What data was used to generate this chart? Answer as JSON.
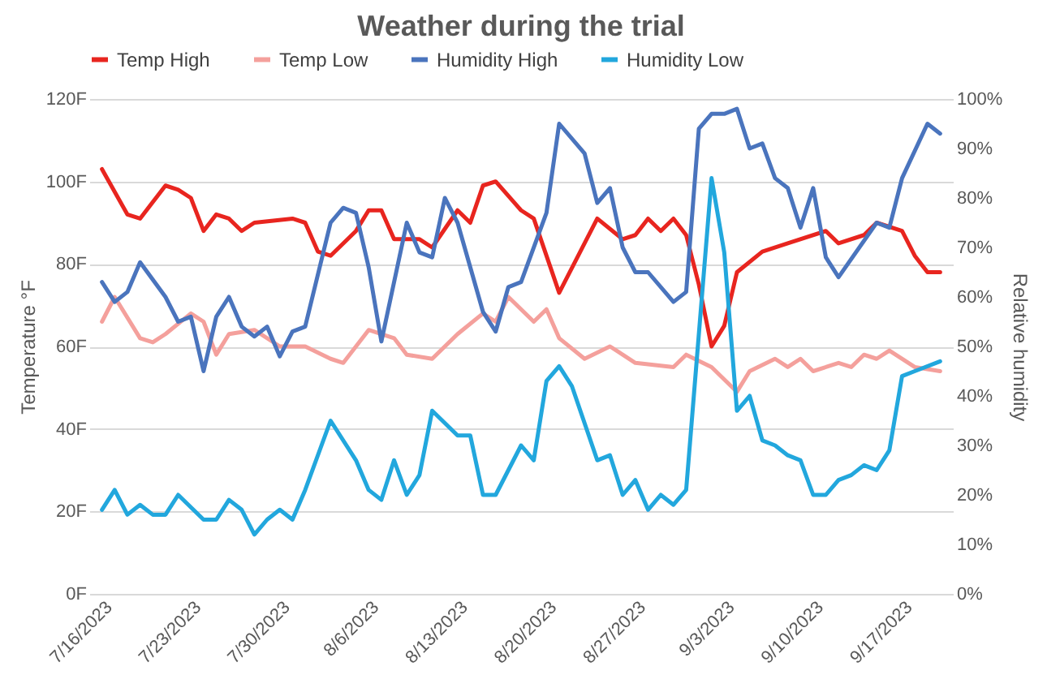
{
  "chart_data": {
    "type": "line",
    "title": "Weather during the trial",
    "ylabel": "Temperature °F",
    "y2label": "Relative humidity",
    "legend": "top",
    "grid": "y",
    "marker": "none",
    "line_style": "solid",
    "xlim": [
      "2023-07-15",
      "2023-09-21"
    ],
    "xticks": [
      {
        "value": "2023-07-16",
        "label": "7/16/2023"
      },
      {
        "value": "2023-07-23",
        "label": "7/23/2023"
      },
      {
        "value": "2023-07-30",
        "label": "7/30/2023"
      },
      {
        "value": "2023-08-06",
        "label": "8/6/2023"
      },
      {
        "value": "2023-08-13",
        "label": "8/13/2023"
      },
      {
        "value": "2023-08-20",
        "label": "8/20/2023"
      },
      {
        "value": "2023-08-27",
        "label": "8/27/2023"
      },
      {
        "value": "2023-09-03",
        "label": "9/3/2023"
      },
      {
        "value": "2023-09-10",
        "label": "9/10/2023"
      },
      {
        "value": "2023-09-17",
        "label": "9/17/2023"
      }
    ],
    "ylim": [
      0,
      120
    ],
    "yticks": [
      {
        "value": 0,
        "label": "0F"
      },
      {
        "value": 20,
        "label": "20F"
      },
      {
        "value": 40,
        "label": "40F"
      },
      {
        "value": 60,
        "label": "60F"
      },
      {
        "value": 80,
        "label": "80F"
      },
      {
        "value": 100,
        "label": "100F"
      },
      {
        "value": 120,
        "label": "120F"
      }
    ],
    "y2lim": [
      0,
      100
    ],
    "y2ticks": [
      {
        "value": 0,
        "label": "0%"
      },
      {
        "value": 10,
        "label": "10%"
      },
      {
        "value": 20,
        "label": "20%"
      },
      {
        "value": 30,
        "label": "30%"
      },
      {
        "value": 40,
        "label": "40%"
      },
      {
        "value": 50,
        "label": "50%"
      },
      {
        "value": 60,
        "label": "60%"
      },
      {
        "value": 70,
        "label": "70%"
      },
      {
        "value": 80,
        "label": "80%"
      },
      {
        "value": 90,
        "label": "90%"
      },
      {
        "value": 100,
        "label": "100%"
      }
    ],
    "series": [
      {
        "name": "Temp High",
        "color": "#e8251f",
        "x": [
          "2023-07-16",
          "2023-07-18",
          "2023-07-19",
          "2023-07-21",
          "2023-07-22",
          "2023-07-23",
          "2023-07-24",
          "2023-07-25",
          "2023-07-26",
          "2023-07-27",
          "2023-07-28",
          "2023-07-31",
          "2023-08-01",
          "2023-08-02",
          "2023-08-03",
          "2023-08-05",
          "2023-08-06",
          "2023-08-07",
          "2023-08-08",
          "2023-08-10",
          "2023-08-11",
          "2023-08-13",
          "2023-08-14",
          "2023-08-15",
          "2023-08-16",
          "2023-08-18",
          "2023-08-19",
          "2023-08-21",
          "2023-08-23",
          "2023-08-24",
          "2023-08-26",
          "2023-08-27",
          "2023-08-28",
          "2023-08-29",
          "2023-08-30",
          "2023-08-31",
          "2023-09-01",
          "2023-09-02",
          "2023-09-03",
          "2023-09-04",
          "2023-09-06",
          "2023-09-08",
          "2023-09-11",
          "2023-09-12",
          "2023-09-14",
          "2023-09-15",
          "2023-09-17",
          "2023-09-18",
          "2023-09-19",
          "2023-09-20"
        ],
        "values": [
          103,
          92,
          91,
          99,
          98,
          96,
          88,
          92,
          91,
          88,
          90,
          91,
          90,
          83,
          82,
          88,
          93,
          93,
          86,
          86,
          84,
          93,
          90,
          99,
          100,
          93,
          91,
          73,
          85,
          91,
          86,
          87,
          91,
          88,
          91,
          87,
          75,
          60,
          65,
          78,
          83,
          85,
          88,
          85,
          87,
          90,
          88,
          82,
          78,
          78
        ]
      },
      {
        "name": "Temp Low",
        "color": "#f4a09c",
        "x": [
          "2023-07-16",
          "2023-07-17",
          "2023-07-19",
          "2023-07-20",
          "2023-07-21",
          "2023-07-23",
          "2023-07-24",
          "2023-07-25",
          "2023-07-26",
          "2023-07-28",
          "2023-07-30",
          "2023-08-01",
          "2023-08-03",
          "2023-08-04",
          "2023-08-06",
          "2023-08-08",
          "2023-08-09",
          "2023-08-11",
          "2023-08-13",
          "2023-08-15",
          "2023-08-16",
          "2023-08-17",
          "2023-08-19",
          "2023-08-20",
          "2023-08-21",
          "2023-08-23",
          "2023-08-25",
          "2023-08-27",
          "2023-08-30",
          "2023-08-31",
          "2023-09-02",
          "2023-09-03",
          "2023-09-04",
          "2023-09-05",
          "2023-09-07",
          "2023-09-08",
          "2023-09-09",
          "2023-09-10",
          "2023-09-12",
          "2023-09-13",
          "2023-09-14",
          "2023-09-15",
          "2023-09-16",
          "2023-09-18",
          "2023-09-20"
        ],
        "values": [
          66,
          72,
          62,
          61,
          63,
          68,
          66,
          58,
          63,
          64,
          60,
          60,
          57,
          56,
          64,
          62,
          58,
          57,
          63,
          68,
          66,
          72,
          66,
          69,
          62,
          57,
          60,
          56,
          55,
          58,
          55,
          52,
          49,
          54,
          57,
          55,
          57,
          54,
          56,
          55,
          58,
          57,
          59,
          55,
          54
        ]
      },
      {
        "name": "Humidity High",
        "color": "#4a74bd",
        "axis": "y2",
        "x": [
          "2023-07-16",
          "2023-07-17",
          "2023-07-18",
          "2023-07-19",
          "2023-07-21",
          "2023-07-22",
          "2023-07-23",
          "2023-07-24",
          "2023-07-25",
          "2023-07-26",
          "2023-07-27",
          "2023-07-28",
          "2023-07-29",
          "2023-07-30",
          "2023-07-31",
          "2023-08-01",
          "2023-08-03",
          "2023-08-04",
          "2023-08-05",
          "2023-08-06",
          "2023-08-07",
          "2023-08-09",
          "2023-08-10",
          "2023-08-11",
          "2023-08-12",
          "2023-08-13",
          "2023-08-15",
          "2023-08-16",
          "2023-08-17",
          "2023-08-18",
          "2023-08-20",
          "2023-08-21",
          "2023-08-23",
          "2023-08-24",
          "2023-08-25",
          "2023-08-26",
          "2023-08-27",
          "2023-08-28",
          "2023-08-30",
          "2023-08-31",
          "2023-09-01",
          "2023-09-02",
          "2023-09-03",
          "2023-09-04",
          "2023-09-05",
          "2023-09-06",
          "2023-09-07",
          "2023-09-08",
          "2023-09-09",
          "2023-09-10",
          "2023-09-11",
          "2023-09-12",
          "2023-09-15",
          "2023-09-16",
          "2023-09-17",
          "2023-09-19",
          "2023-09-20"
        ],
        "values": [
          63,
          59,
          61,
          67,
          60,
          55,
          56,
          45,
          56,
          60,
          54,
          52,
          54,
          48,
          53,
          54,
          75,
          78,
          77,
          66,
          51,
          75,
          69,
          68,
          80,
          75,
          57,
          53,
          62,
          63,
          77,
          95,
          89,
          79,
          82,
          70,
          65,
          65,
          59,
          61,
          94,
          97,
          97,
          98,
          90,
          91,
          84,
          82,
          74,
          82,
          68,
          64,
          75,
          74,
          84,
          95,
          93
        ]
      },
      {
        "name": "Humidity Low",
        "color": "#22a7dd",
        "axis": "y2",
        "x": [
          "2023-07-16",
          "2023-07-17",
          "2023-07-18",
          "2023-07-19",
          "2023-07-20",
          "2023-07-21",
          "2023-07-22",
          "2023-07-24",
          "2023-07-25",
          "2023-07-26",
          "2023-07-27",
          "2023-07-28",
          "2023-07-29",
          "2023-07-30",
          "2023-07-31",
          "2023-08-01",
          "2023-08-03",
          "2023-08-05",
          "2023-08-06",
          "2023-08-07",
          "2023-08-08",
          "2023-08-09",
          "2023-08-10",
          "2023-08-11",
          "2023-08-13",
          "2023-08-14",
          "2023-08-15",
          "2023-08-16",
          "2023-08-18",
          "2023-08-19",
          "2023-08-20",
          "2023-08-21",
          "2023-08-22",
          "2023-08-24",
          "2023-08-25",
          "2023-08-26",
          "2023-08-27",
          "2023-08-28",
          "2023-08-29",
          "2023-08-30",
          "2023-08-31",
          "2023-09-02",
          "2023-09-03",
          "2023-09-04",
          "2023-09-05",
          "2023-09-06",
          "2023-09-07",
          "2023-09-08",
          "2023-09-09",
          "2023-09-10",
          "2023-09-11",
          "2023-09-12",
          "2023-09-13",
          "2023-09-14",
          "2023-09-15",
          "2023-09-16",
          "2023-09-17",
          "2023-09-18",
          "2023-09-20"
        ],
        "values": [
          17,
          21,
          16,
          18,
          16,
          16,
          20,
          15,
          15,
          19,
          17,
          12,
          15,
          17,
          15,
          21,
          35,
          27,
          21,
          19,
          27,
          20,
          24,
          37,
          32,
          32,
          20,
          20,
          30,
          27,
          43,
          46,
          42,
          27,
          28,
          20,
          23,
          17,
          20,
          18,
          21,
          84,
          69,
          37,
          40,
          31,
          30,
          28,
          27,
          20,
          20,
          23,
          24,
          26,
          25,
          29,
          44,
          45,
          47
        ]
      }
    ]
  }
}
